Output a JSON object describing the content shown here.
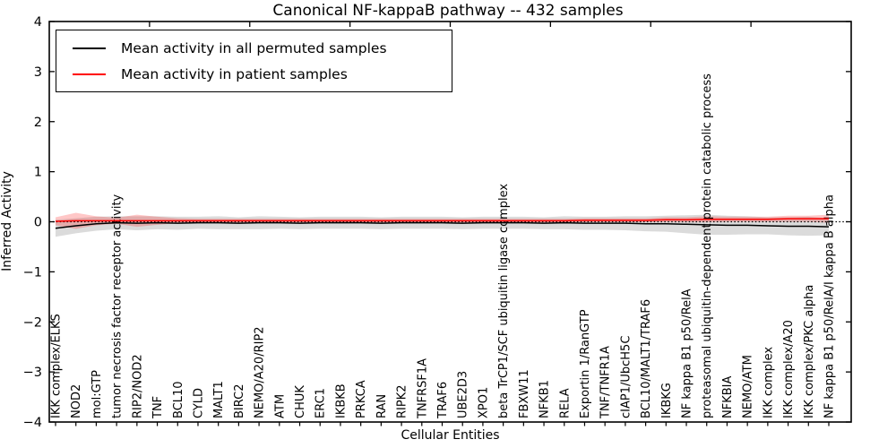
{
  "title": "Canonical NF-kappaB pathway -- 432 samples",
  "legend": {
    "items": [
      {
        "label": "Mean activity in all permuted samples",
        "color": "#000000"
      },
      {
        "label": "Mean activity in patient samples",
        "color": "#ff0000"
      }
    ]
  },
  "chart_data": {
    "type": "line",
    "title": "Canonical NF-kappaB pathway -- 432 samples",
    "xlabel": "Cellular Entities",
    "ylabel": "Inferred Activity",
    "ylim": [
      -4,
      4
    ],
    "yticks": [
      4,
      3,
      2,
      1,
      0,
      -1,
      -2,
      -3,
      -4
    ],
    "grid": false,
    "legend_position": "upper left",
    "zero_line_y": 0,
    "categories": [
      "IKK complex/ELKS",
      "NOD2",
      "mol:GTP",
      "tumor necrosis factor receptor activity",
      "RIP2/NOD2",
      "TNF",
      "BCL10",
      "CYLD",
      "MALT1",
      "BIRC2",
      "NEMO/A20/RIP2",
      "ATM",
      "CHUK",
      "ERC1",
      "IKBKB",
      "PRKCA",
      "RAN",
      "RIPK2",
      "TNFRSF1A",
      "TRAF6",
      "UBE2D3",
      "XPO1",
      "beta TrCP1/SCF ubiquitin ligase complex",
      "FBXW11",
      "NFKB1",
      "RELA",
      "Exportin 1/RanGTP",
      "TNF/TNFR1A",
      "cIAP1/UbcH5C",
      "BCL10/MALT1/TRAF6",
      "IKBKG",
      "NF kappa B1 p50/RelA",
      "proteasomal ubiquitin-dependent protein catabolic process",
      "NFKBIA",
      "NEMO/ATM",
      "IKK complex",
      "IKK complex/A20",
      "IKK complex/PKC alpha",
      "NF kappa B1 p50/RelA/I kappa B alpha"
    ],
    "series": [
      {
        "name": "Mean activity in all permuted samples",
        "color": "#000000",
        "band_color": "rgba(0,0,0,0.14)",
        "values": [
          -0.13,
          -0.08,
          -0.04,
          -0.02,
          -0.03,
          -0.02,
          -0.03,
          -0.02,
          -0.02,
          -0.03,
          -0.02,
          -0.02,
          -0.03,
          -0.02,
          -0.02,
          -0.02,
          -0.03,
          -0.02,
          -0.02,
          -0.02,
          -0.03,
          -0.02,
          -0.02,
          -0.02,
          -0.03,
          -0.02,
          -0.03,
          -0.03,
          -0.03,
          -0.04,
          -0.04,
          -0.05,
          -0.06,
          -0.07,
          -0.07,
          -0.08,
          -0.09,
          -0.09,
          -0.1
        ],
        "band_halfwidth": [
          0.17,
          0.15,
          0.14,
          0.13,
          0.14,
          0.13,
          0.13,
          0.12,
          0.13,
          0.12,
          0.13,
          0.12,
          0.12,
          0.12,
          0.12,
          0.12,
          0.12,
          0.12,
          0.12,
          0.12,
          0.12,
          0.12,
          0.12,
          0.12,
          0.12,
          0.13,
          0.13,
          0.13,
          0.14,
          0.15,
          0.16,
          0.18,
          0.2,
          0.19,
          0.18,
          0.17,
          0.18,
          0.19,
          0.17
        ]
      },
      {
        "name": "Mean activity in patient samples",
        "color": "#ff0000",
        "band_color": "rgba(255,0,0,0.22)",
        "values": [
          0.01,
          0.02,
          0.02,
          0.02,
          0.02,
          0.02,
          0.02,
          0.02,
          0.02,
          0.02,
          0.02,
          0.02,
          0.02,
          0.02,
          0.02,
          0.02,
          0.02,
          0.02,
          0.02,
          0.02,
          0.02,
          0.02,
          0.02,
          0.02,
          0.02,
          0.02,
          0.03,
          0.03,
          0.03,
          0.03,
          0.04,
          0.04,
          0.05,
          0.05,
          0.05,
          0.05,
          0.06,
          0.06,
          0.06
        ],
        "band_halfwidth": [
          0.08,
          0.16,
          0.09,
          0.06,
          0.12,
          0.08,
          0.05,
          0.04,
          0.04,
          0.04,
          0.04,
          0.04,
          0.04,
          0.04,
          0.04,
          0.04,
          0.04,
          0.04,
          0.04,
          0.04,
          0.04,
          0.04,
          0.04,
          0.04,
          0.04,
          0.04,
          0.04,
          0.04,
          0.04,
          0.04,
          0.05,
          0.05,
          0.06,
          0.05,
          0.05,
          0.05,
          0.06,
          0.06,
          0.08
        ]
      }
    ]
  }
}
